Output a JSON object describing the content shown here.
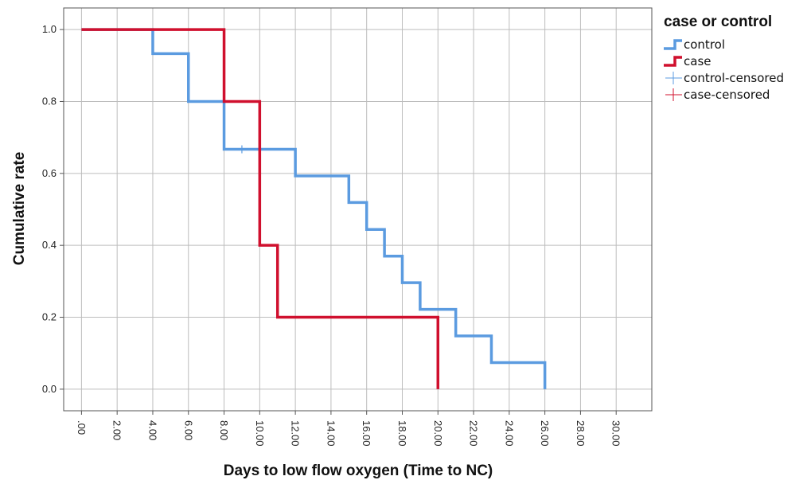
{
  "chart_data": {
    "type": "line",
    "subtype": "kaplan-meier-step",
    "xlabel": "Days to low flow oxygen (Time to NC)",
    "ylabel": "Cumulative rate",
    "xlim": [
      -1,
      32
    ],
    "ylim": [
      -0.06,
      1.06
    ],
    "x_ticks": [
      0,
      2,
      4,
      6,
      8,
      10,
      12,
      14,
      16,
      18,
      20,
      22,
      24,
      26,
      28,
      30
    ],
    "x_tick_labels": [
      ".00",
      "2.00",
      "4.00",
      "6.00",
      "8.00",
      "10.00",
      "12.00",
      "14.00",
      "16.00",
      "18.00",
      "20.00",
      "22.00",
      "24.00",
      "26.00",
      "28.00",
      "30.00"
    ],
    "y_ticks": [
      0,
      0.2,
      0.4,
      0.6,
      0.8,
      1.0
    ],
    "y_tick_labels": [
      "0.0",
      "0.2",
      "0.4",
      "0.6",
      "0.8",
      "1.0"
    ],
    "grid": "vertical-and-horizontal",
    "legend_title": "case or control",
    "legend_position": "top-right",
    "legend_labels": [
      "control",
      "case",
      "control-censored",
      "case-censored"
    ],
    "series": [
      {
        "name": "control",
        "color": "#5B9BE0",
        "steps": [
          {
            "x": 0,
            "y": 1.0
          },
          {
            "x": 4,
            "y": 0.933
          },
          {
            "x": 6,
            "y": 0.8
          },
          {
            "x": 8,
            "y": 0.667
          },
          {
            "x": 12,
            "y": 0.593
          },
          {
            "x": 15,
            "y": 0.519
          },
          {
            "x": 16,
            "y": 0.444
          },
          {
            "x": 17,
            "y": 0.37
          },
          {
            "x": 18,
            "y": 0.296
          },
          {
            "x": 19,
            "y": 0.222
          },
          {
            "x": 21,
            "y": 0.148
          },
          {
            "x": 23,
            "y": 0.074
          },
          {
            "x": 26,
            "y": 0.0
          }
        ],
        "censored": [
          {
            "x": 9,
            "y": 0.667
          }
        ]
      },
      {
        "name": "case",
        "color": "#D0102E",
        "steps": [
          {
            "x": 0,
            "y": 1.0
          },
          {
            "x": 8,
            "y": 0.8
          },
          {
            "x": 10,
            "y": 0.4
          },
          {
            "x": 11,
            "y": 0.2
          },
          {
            "x": 20,
            "y": 0.0
          }
        ],
        "censored": []
      }
    ]
  }
}
